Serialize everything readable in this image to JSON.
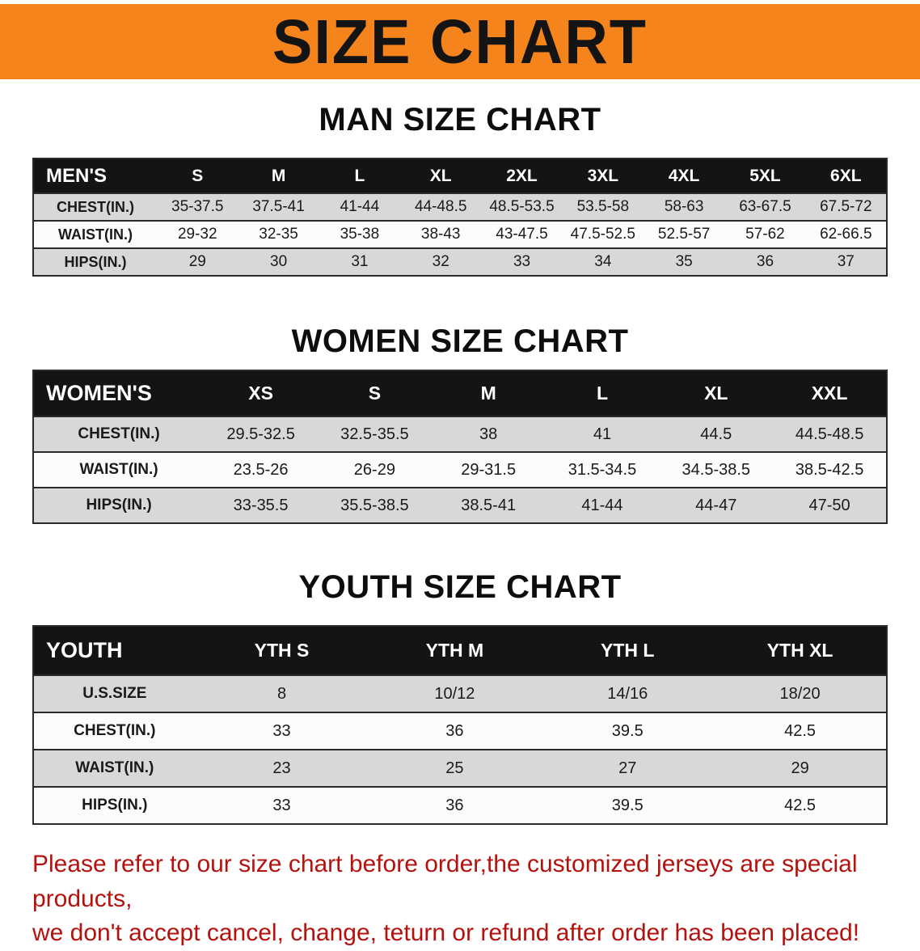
{
  "banner": {
    "title": "SIZE CHART",
    "background_color": "#f6841c",
    "text_color": "#141414"
  },
  "sections": [
    {
      "id": "men",
      "heading": "MAN SIZE CHART",
      "table": {
        "header": [
          "MEN'S",
          "S",
          "M",
          "L",
          "XL",
          "2XL",
          "3XL",
          "4XL",
          "5XL",
          "6XL"
        ],
        "rows": [
          [
            "CHEST(IN.)",
            "35-37.5",
            "37.5-41",
            "41-44",
            "44-48.5",
            "48.5-53.5",
            "53.5-58",
            "58-63",
            "63-67.5",
            "67.5-72"
          ],
          [
            "WAIST(IN.)",
            "29-32",
            "32-35",
            "35-38",
            "38-43",
            "43-47.5",
            "47.5-52.5",
            "52.5-57",
            "57-62",
            "62-66.5"
          ],
          [
            "HIPS(IN.)",
            "29",
            "30",
            "31",
            "32",
            "33",
            "34",
            "35",
            "36",
            "37"
          ]
        ]
      }
    },
    {
      "id": "women",
      "heading": "WOMEN SIZE CHART",
      "table": {
        "header": [
          "WOMEN'S",
          "XS",
          "S",
          "M",
          "L",
          "XL",
          "XXL"
        ],
        "rows": [
          [
            "CHEST(IN.)",
            "29.5-32.5",
            "32.5-35.5",
            "38",
            "41",
            "44.5",
            "44.5-48.5"
          ],
          [
            "WAIST(IN.)",
            "23.5-26",
            "26-29",
            "29-31.5",
            "31.5-34.5",
            "34.5-38.5",
            "38.5-42.5"
          ],
          [
            "HIPS(IN.)",
            "33-35.5",
            "35.5-38.5",
            "38.5-41",
            "41-44",
            "44-47",
            "47-50"
          ]
        ]
      }
    },
    {
      "id": "youth",
      "heading": "YOUTH SIZE CHART",
      "table": {
        "header": [
          "YOUTH",
          "YTH S",
          "YTH M",
          "YTH L",
          "YTH XL"
        ],
        "rows": [
          [
            "U.S.SIZE",
            "8",
            "10/12",
            "14/16",
            "18/20"
          ],
          [
            "CHEST(IN.)",
            "33",
            "36",
            "39.5",
            "42.5"
          ],
          [
            "WAIST(IN.)",
            "23",
            "25",
            "27",
            "29"
          ],
          [
            "HIPS(IN.)",
            "33",
            "36",
            "39.5",
            "42.5"
          ]
        ]
      }
    }
  ],
  "disclaimer": {
    "lines": [
      "Please refer to our size chart before order,the customized jerseys are special products,",
      "we don't accept cancel, change, teturn or refund after order has been placed!"
    ],
    "text_color": "#b3120e"
  },
  "colors": {
    "row_stripe": "#d8d8d8",
    "row_alt": "#fcfcfc",
    "table_header_bg": "#141414",
    "table_header_text": "#ffffff",
    "table_border": "#2a2a2a"
  }
}
